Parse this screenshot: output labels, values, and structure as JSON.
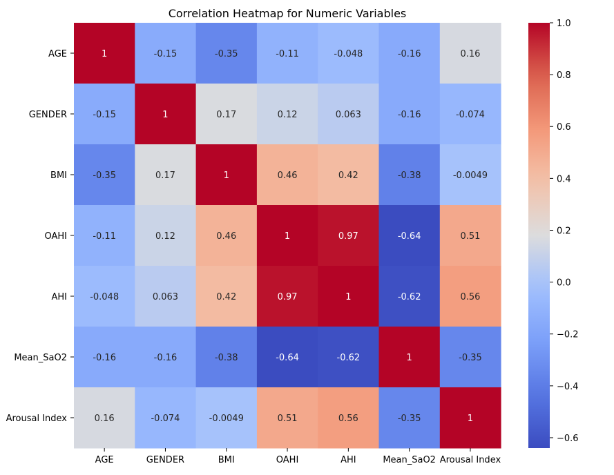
{
  "chart_data": {
    "type": "heatmap",
    "title": "Correlation Heatmap for Numeric Variables",
    "row_labels": [
      "AGE",
      "GENDER",
      "BMI",
      "OAHI",
      "AHI",
      "Mean_SaO2",
      "Arousal Index"
    ],
    "col_labels": [
      "AGE",
      "GENDER",
      "BMI",
      "OAHI",
      "AHI",
      "Mean_SaO2",
      "Arousal Index"
    ],
    "values": [
      [
        1,
        -0.15,
        -0.35,
        -0.11,
        -0.048,
        -0.16,
        0.16
      ],
      [
        -0.15,
        1,
        0.17,
        0.12,
        0.063,
        -0.16,
        -0.074
      ],
      [
        -0.35,
        0.17,
        1,
        0.46,
        0.42,
        -0.38,
        -0.0049
      ],
      [
        -0.11,
        0.12,
        0.46,
        1,
        0.97,
        -0.64,
        0.51
      ],
      [
        -0.048,
        0.063,
        0.42,
        0.97,
        1,
        -0.62,
        0.56
      ],
      [
        -0.16,
        -0.16,
        -0.38,
        -0.64,
        -0.62,
        1,
        -0.35
      ],
      [
        0.16,
        -0.074,
        -0.0049,
        0.51,
        0.56,
        -0.35,
        1
      ]
    ],
    "annotations": [
      [
        "1",
        "-0.15",
        "-0.35",
        "-0.11",
        "-0.048",
        "-0.16",
        "0.16"
      ],
      [
        "-0.15",
        "1",
        "0.17",
        "0.12",
        "0.063",
        "-0.16",
        "-0.074"
      ],
      [
        "-0.35",
        "0.17",
        "1",
        "0.46",
        "0.42",
        "-0.38",
        "-0.0049"
      ],
      [
        "-0.11",
        "0.12",
        "0.46",
        "1",
        "0.97",
        "-0.64",
        "0.51"
      ],
      [
        "-0.048",
        "0.063",
        "0.42",
        "0.97",
        "1",
        "-0.62",
        "0.56"
      ],
      [
        "-0.16",
        "-0.16",
        "-0.38",
        "-0.64",
        "-0.62",
        "1",
        "-0.35"
      ],
      [
        "0.16",
        "-0.074",
        "-0.0049",
        "0.51",
        "0.56",
        "-0.35",
        "1"
      ]
    ],
    "colormap": "coolwarm",
    "color_range": [
      -0.64,
      1
    ],
    "colorbar_ticks": [
      1.0,
      0.8,
      0.6,
      0.4,
      0.2,
      0.0,
      -0.2,
      -0.4,
      -0.6
    ],
    "colorbar_tick_labels": [
      "1.0",
      "0.8",
      "0.6",
      "0.4",
      "0.2",
      "0.0",
      "−0.2",
      "−0.4",
      "−0.6"
    ],
    "grid": false,
    "legend": "colorbar-right"
  }
}
